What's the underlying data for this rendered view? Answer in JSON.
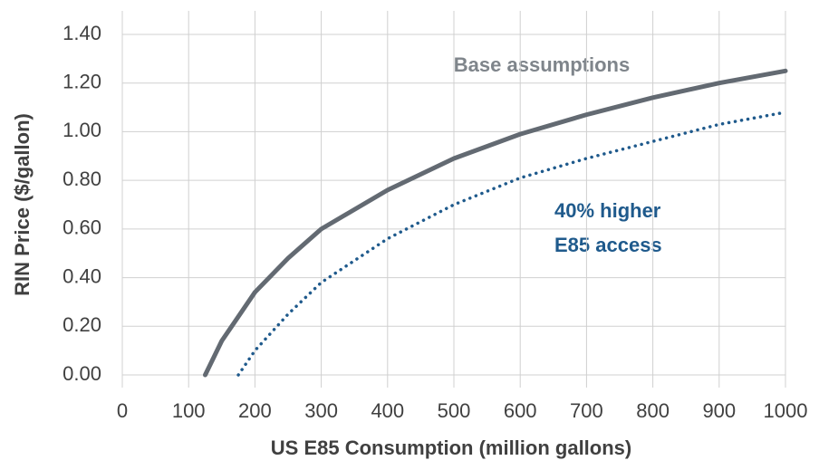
{
  "chart_data": {
    "type": "line",
    "xlabel": "US E85 Consumption (million gallons)",
    "ylabel": "RIN Price ($/gallon)",
    "annotations": [
      "Base assumptions",
      "40% higher",
      "E85 access"
    ],
    "series": [
      {
        "color": "#636a72",
        "style": "solid",
        "x": [
          125,
          150,
          200,
          250,
          300,
          400,
          500,
          600,
          700,
          800,
          900,
          1000
        ],
        "values": [
          0,
          0.14,
          0.34,
          0.48,
          0.6,
          0.76,
          0.89,
          0.99,
          1.07,
          1.14,
          1.2,
          1.25
        ]
      },
      {
        "color": "#1f5a8c",
        "style": "dotted",
        "x": [
          175,
          200,
          250,
          300,
          400,
          500,
          600,
          700,
          800,
          900,
          1000
        ],
        "values": [
          0,
          0.1,
          0.25,
          0.38,
          0.56,
          0.7,
          0.81,
          0.89,
          0.96,
          1.03,
          1.08
        ]
      }
    ],
    "xlim": [
      0,
      1000
    ],
    "xticks": [
      0,
      100,
      200,
      300,
      400,
      500,
      600,
      700,
      800,
      900,
      1000
    ],
    "ylim": [
      0,
      1.4
    ],
    "yticks": [
      {
        "value": 0,
        "label": "0.00"
      },
      {
        "value": 0.2,
        "label": "0.20"
      },
      {
        "value": 0.4,
        "label": "0.40"
      },
      {
        "value": 0.6,
        "label": "0.60"
      },
      {
        "value": 0.8,
        "label": "0.80"
      },
      {
        "value": 1,
        "label": "1.00"
      },
      {
        "value": 1.2,
        "label": "1.20"
      },
      {
        "value": 1.4,
        "label": "1.40"
      }
    ],
    "grid": true
  }
}
